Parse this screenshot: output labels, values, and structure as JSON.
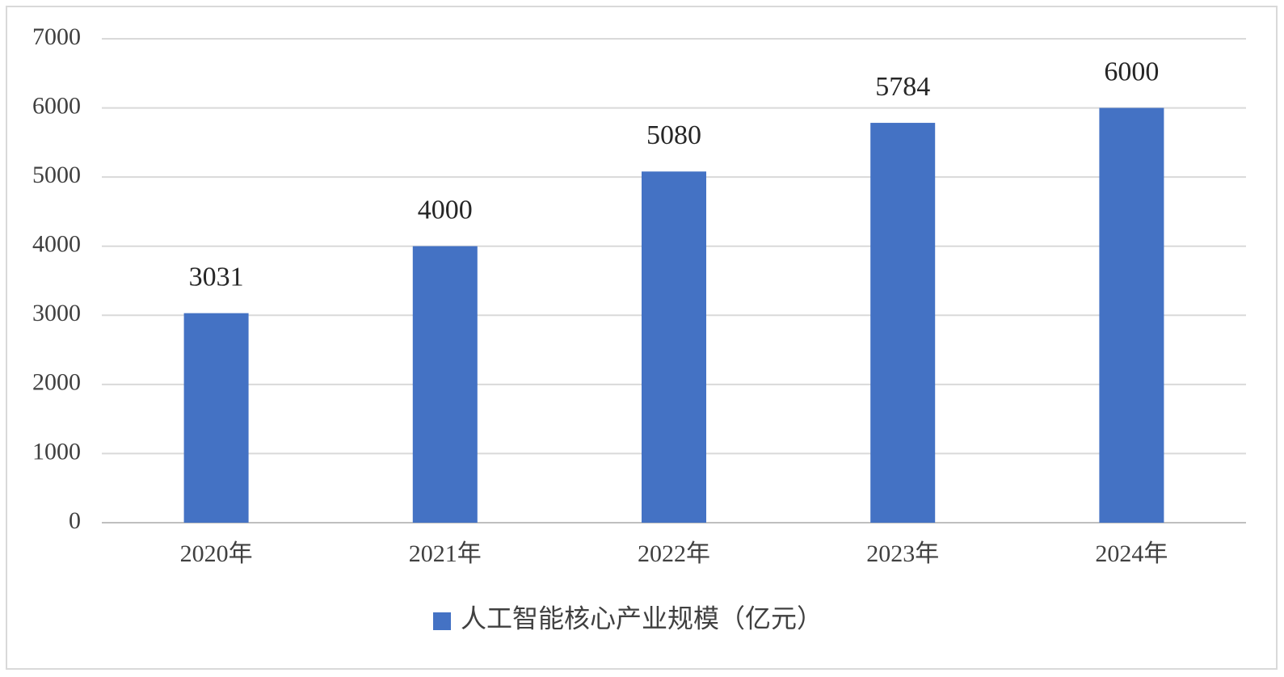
{
  "chart_data": {
    "type": "bar",
    "categories": [
      "2020年",
      "2021年",
      "2022年",
      "2023年",
      "2024年"
    ],
    "series": [
      {
        "name": "人工智能核心产业规模（亿元）",
        "color": "#4472c4",
        "values": [
          3031,
          4000,
          5080,
          5784,
          6000
        ]
      }
    ],
    "ylim": [
      0,
      7000
    ],
    "yticks": [
      0,
      1000,
      2000,
      3000,
      4000,
      5000,
      6000,
      7000
    ],
    "grid": true,
    "legend": "bottom"
  }
}
